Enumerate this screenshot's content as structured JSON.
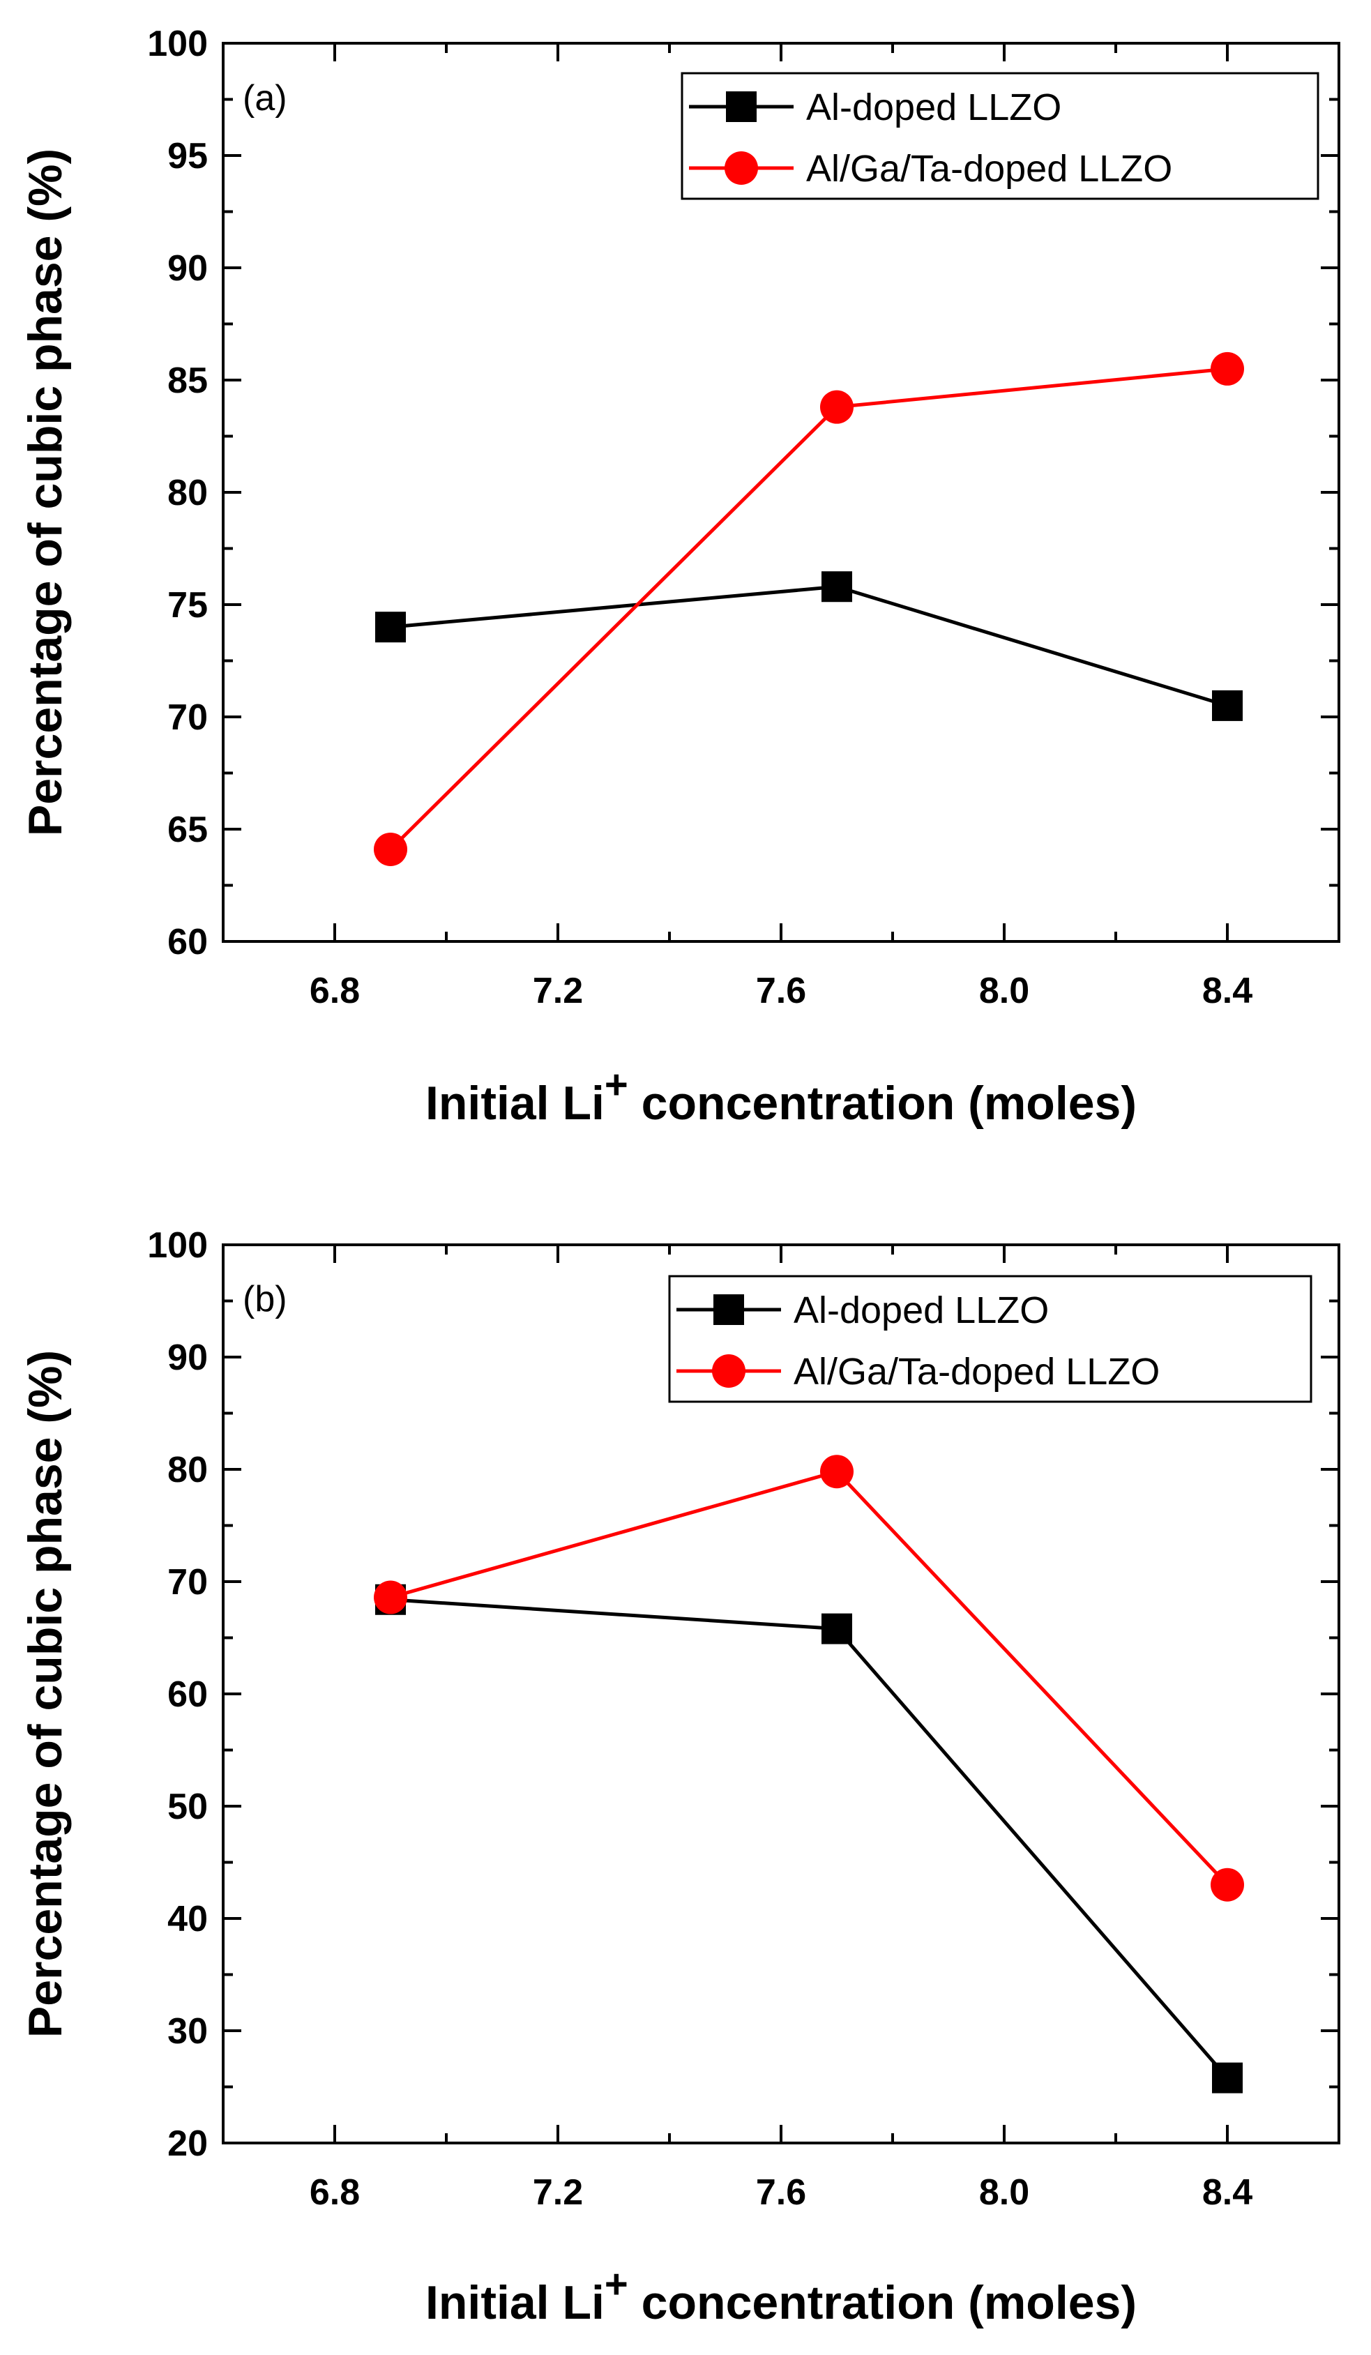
{
  "chart_data": [
    {
      "type": "line",
      "panel_label": "(a)",
      "x": [
        6.9,
        7.7,
        8.4
      ],
      "series": [
        {
          "name": "Al-doped LLZO",
          "values": [
            74.0,
            75.8,
            70.5
          ],
          "color": "#000000",
          "marker": "square"
        },
        {
          "name": "Al/Ga/Ta-doped LLZO",
          "values": [
            64.1,
            83.8,
            85.5
          ],
          "color": "#ff0000",
          "marker": "circle"
        }
      ],
      "xlabel_main": "Initial Li",
      "xlabel_sup": "+",
      "xlabel_rest": " concentration (moles)",
      "ylabel": "Percentage of cubic phase (%)",
      "xlim": [
        6.6,
        8.6
      ],
      "ylim": [
        60,
        100
      ],
      "xticks": [
        6.8,
        7.2,
        7.6,
        8.0,
        8.4
      ],
      "xtick_labels": [
        "6.8",
        "7.2",
        "7.6",
        "8.0",
        "8.4"
      ],
      "yticks": [
        60,
        65,
        70,
        75,
        80,
        85,
        90,
        95,
        100
      ],
      "ytick_labels": [
        "60",
        "65",
        "70",
        "75",
        "80",
        "85",
        "90",
        "95",
        "100"
      ],
      "legend": "top-right",
      "grid": false
    },
    {
      "type": "line",
      "panel_label": "(b)",
      "x": [
        6.9,
        7.7,
        8.4
      ],
      "series": [
        {
          "name": "Al-doped LLZO",
          "values": [
            68.4,
            65.8,
            25.8
          ],
          "color": "#000000",
          "marker": "square"
        },
        {
          "name": "Al/Ga/Ta-doped LLZO",
          "values": [
            68.6,
            79.8,
            43.0
          ],
          "color": "#ff0000",
          "marker": "circle"
        }
      ],
      "xlabel_main": "Initial Li",
      "xlabel_sup": "+",
      "xlabel_rest": " concentration (moles)",
      "ylabel": "Percentage of cubic phase (%)",
      "xlim": [
        6.6,
        8.6
      ],
      "ylim": [
        20,
        100
      ],
      "xticks": [
        6.8,
        7.2,
        7.6,
        8.0,
        8.4
      ],
      "xtick_labels": [
        "6.8",
        "7.2",
        "7.6",
        "8.0",
        "8.4"
      ],
      "yticks": [
        20,
        30,
        40,
        50,
        60,
        70,
        80,
        90,
        100
      ],
      "ytick_labels": [
        "20",
        "30",
        "40",
        "50",
        "60",
        "70",
        "80",
        "90",
        "100"
      ],
      "legend": "top-right",
      "grid": false
    }
  ]
}
